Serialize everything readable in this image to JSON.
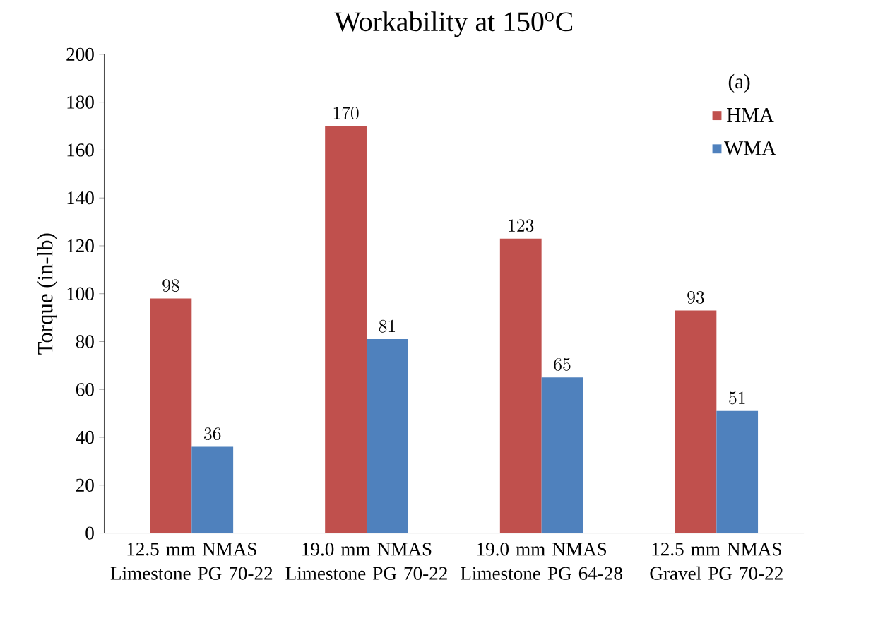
{
  "chart_data": {
    "type": "bar",
    "title": "Workability at 150$^{o}$C",
    "ylabel": "Torque (in-lb)",
    "legend_title": "(a)",
    "categories": [
      "12.5 mm NMAS Limestone PG 70-22",
      "19.0 mm NMAS Limestone PG 70-22",
      "19.0 mm NMAS Limestone PG 64-28",
      "12.5 mm NMAS Gravel PG 70-22"
    ],
    "series": [
      {
        "name": "HMA",
        "color": "#c0504d",
        "values": [
          98,
          170,
          123,
          93
        ]
      },
      {
        "name": "WMA",
        "color": "#4f81bd",
        "values": [
          36,
          81,
          65,
          51
        ]
      }
    ],
    "ylim": [
      0,
      200
    ],
    "yticks": [
      0,
      20,
      40,
      60,
      80,
      100,
      120,
      140,
      160,
      180,
      200
    ],
    "data_labels": true,
    "legend": "top right",
    "grid": false
  }
}
